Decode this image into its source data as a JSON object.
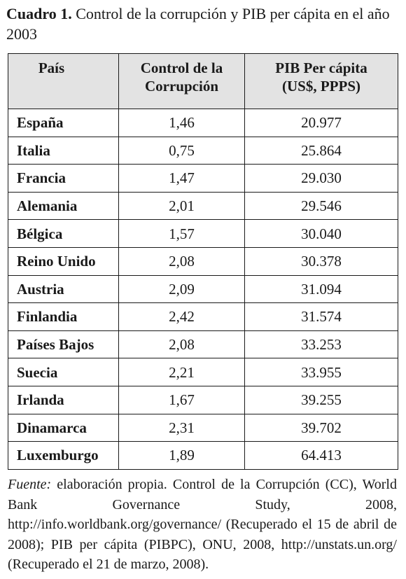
{
  "caption": {
    "label": "Cuadro 1.",
    "text": " Control de la corrupción y PIB per cápita en el año 2003"
  },
  "table": {
    "headers": {
      "country": "País",
      "control": "Control de la Corrupción",
      "pib_line1": "PIB Per cápita",
      "pib_line2": "(US$, PPPS)"
    },
    "rows": [
      {
        "country": "España",
        "control": "1,46",
        "pib": "20.977"
      },
      {
        "country": "Italia",
        "control": "0,75",
        "pib": "25.864"
      },
      {
        "country": "Francia",
        "control": "1,47",
        "pib": "29.030"
      },
      {
        "country": "Alemania",
        "control": "2,01",
        "pib": "29.546"
      },
      {
        "country": "Bélgica",
        "control": "1,57",
        "pib": "30.040"
      },
      {
        "country": "Reino Unido",
        "control": "2,08",
        "pib": "30.378"
      },
      {
        "country": "Austria",
        "control": "2,09",
        "pib": "31.094"
      },
      {
        "country": "Finlandia",
        "control": "2,42",
        "pib": "31.574"
      },
      {
        "country": "Países Bajos",
        "control": "2,08",
        "pib": "33.253"
      },
      {
        "country": "Suecia",
        "control": "2,21",
        "pib": "33.955"
      },
      {
        "country": "Irlanda",
        "control": "1,67",
        "pib": "39.255"
      },
      {
        "country": "Dinamarca",
        "control": "2,31",
        "pib": "39.702"
      },
      {
        "country": "Luxemburgo",
        "control": "1,89",
        "pib": "64.413"
      }
    ]
  },
  "source": {
    "label": "Fuente:",
    "text": " elaboración propia. Control de la Corrupción (CC), World Bank Governance Study, 2008, http://info.worldbank.org/governance/ (Recuperado el 15 de abril de 2008); PIB per cápita (PIBPC), ONU, 2008, http://unstats.un.org/ (Recuperado el 21 de marzo, 2008)."
  }
}
